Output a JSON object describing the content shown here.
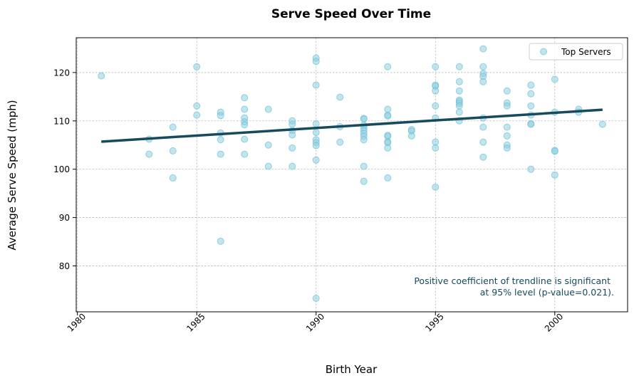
{
  "chart_data": {
    "type": "scatter",
    "title": "Serve Speed Over Time",
    "xlabel": "Birth Year",
    "ylabel": "Average Serve Speed (mph)",
    "xlim": [
      1979.95,
      2003.05
    ],
    "ylim": [
      70.5,
      127.2
    ],
    "xticks": [
      1980,
      1985,
      1990,
      1995,
      2000
    ],
    "yticks": [
      80,
      90,
      100,
      110,
      120
    ],
    "grid": true,
    "legend": {
      "placement": "top-right",
      "entries": [
        "Top Servers"
      ]
    },
    "series": [
      {
        "name": "Top Servers",
        "color": "#8ecfe0",
        "points": [
          [
            1981,
            119.3
          ],
          [
            1983,
            106.2
          ],
          [
            1983,
            103.1
          ],
          [
            1984,
            108.7
          ],
          [
            1984,
            103.8
          ],
          [
            1984,
            98.2
          ],
          [
            1985,
            121.2
          ],
          [
            1985,
            113.1
          ],
          [
            1985,
            111.2
          ],
          [
            1986,
            111.8
          ],
          [
            1986,
            111.1
          ],
          [
            1986,
            107.5
          ],
          [
            1986,
            106.1
          ],
          [
            1986,
            103.1
          ],
          [
            1986,
            85.1
          ],
          [
            1987,
            114.8
          ],
          [
            1987,
            112.4
          ],
          [
            1987,
            110.6
          ],
          [
            1987,
            109.8
          ],
          [
            1987,
            109.2
          ],
          [
            1987,
            106.2
          ],
          [
            1987,
            103.1
          ],
          [
            1988,
            112.4
          ],
          [
            1988,
            105.0
          ],
          [
            1988,
            100.6
          ],
          [
            1989,
            110.0
          ],
          [
            1989,
            109.3
          ],
          [
            1989,
            108.0
          ],
          [
            1989,
            107.1
          ],
          [
            1989,
            104.4
          ],
          [
            1989,
            100.6
          ],
          [
            1990,
            123.0
          ],
          [
            1990,
            122.3
          ],
          [
            1990,
            117.4
          ],
          [
            1990,
            109.4
          ],
          [
            1990,
            107.6
          ],
          [
            1990,
            106.1
          ],
          [
            1990,
            105.5
          ],
          [
            1990,
            104.9
          ],
          [
            1990,
            101.9
          ],
          [
            1990,
            73.3
          ],
          [
            1991,
            114.9
          ],
          [
            1991,
            108.8
          ],
          [
            1991,
            105.6
          ],
          [
            1992,
            110.5
          ],
          [
            1992,
            110.4
          ],
          [
            1992,
            109.1
          ],
          [
            1992,
            108.6
          ],
          [
            1992,
            108.0
          ],
          [
            1992,
            107.4
          ],
          [
            1992,
            106.8
          ],
          [
            1992,
            106.1
          ],
          [
            1992,
            100.6
          ],
          [
            1992,
            97.5
          ],
          [
            1993,
            121.2
          ],
          [
            1993,
            112.4
          ],
          [
            1993,
            111.2
          ],
          [
            1993,
            111.0
          ],
          [
            1993,
            107.0
          ],
          [
            1993,
            106.8
          ],
          [
            1993,
            105.7
          ],
          [
            1993,
            105.5
          ],
          [
            1993,
            104.4
          ],
          [
            1993,
            98.2
          ],
          [
            1994,
            108.2
          ],
          [
            1994,
            107.9
          ],
          [
            1994,
            106.9
          ],
          [
            1995,
            121.2
          ],
          [
            1995,
            117.4
          ],
          [
            1995,
            117.2
          ],
          [
            1995,
            116.2
          ],
          [
            1995,
            113.1
          ],
          [
            1995,
            110.6
          ],
          [
            1995,
            105.6
          ],
          [
            1995,
            104.4
          ],
          [
            1995,
            96.3
          ],
          [
            1996,
            121.2
          ],
          [
            1996,
            118.1
          ],
          [
            1996,
            116.2
          ],
          [
            1996,
            114.3
          ],
          [
            1996,
            114.0
          ],
          [
            1996,
            113.6
          ],
          [
            1996,
            113.1
          ],
          [
            1996,
            111.8
          ],
          [
            1996,
            110.0
          ],
          [
            1997,
            124.9
          ],
          [
            1997,
            121.2
          ],
          [
            1997,
            119.8
          ],
          [
            1997,
            119.2
          ],
          [
            1997,
            118.1
          ],
          [
            1997,
            110.6
          ],
          [
            1997,
            108.7
          ],
          [
            1997,
            105.6
          ],
          [
            1997,
            102.5
          ],
          [
            1998,
            116.2
          ],
          [
            1998,
            113.7
          ],
          [
            1998,
            113.1
          ],
          [
            1998,
            108.7
          ],
          [
            1998,
            106.9
          ],
          [
            1998,
            105.0
          ],
          [
            1998,
            104.4
          ],
          [
            1999,
            117.4
          ],
          [
            1999,
            115.6
          ],
          [
            1999,
            113.1
          ],
          [
            1999,
            111.2
          ],
          [
            1999,
            109.4
          ],
          [
            1999,
            109.3
          ],
          [
            1999,
            100.0
          ],
          [
            2000,
            118.6
          ],
          [
            2000,
            111.8
          ],
          [
            2000,
            103.9
          ],
          [
            2000,
            103.7
          ],
          [
            2000,
            98.8
          ],
          [
            2001,
            112.4
          ],
          [
            2001,
            111.8
          ],
          [
            2002,
            109.3
          ]
        ]
      }
    ],
    "trendline": {
      "x": [
        1981,
        2002
      ],
      "y": [
        105.7,
        112.3
      ]
    },
    "annotation": [
      "Positive coefficient of trendline is significant",
      "at 95% level (p-value=0.021)."
    ]
  }
}
